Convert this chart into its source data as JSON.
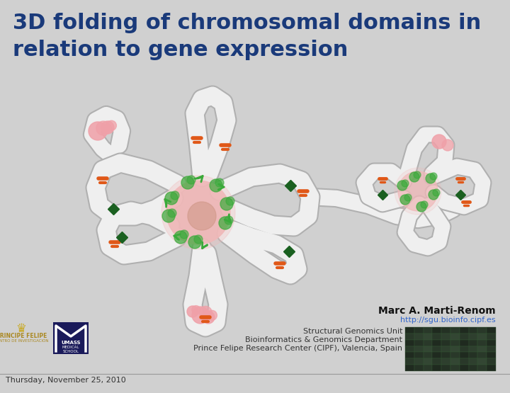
{
  "title_line1": "3D folding of chromosomal domains in",
  "title_line2": "relation to gene expression",
  "title_color": "#1a3a7a",
  "title_fontsize": 22,
  "bg_color": "#d0d0d0",
  "author_name": "Marc A. Marti-Renom",
  "author_url": "http://sgu.bioinfo.cipf.es",
  "url_color": "#3366cc",
  "affil1": "Structural Genomics Unit",
  "affil2": "Bioinformatics & Genomics Department",
  "affil3": "Prince Felipe Research Center (CIPF), Valencia, Spain",
  "affil_fontsize": 8,
  "affil_color": "#333333",
  "date_text": "Thursday, November 25, 2010",
  "date_color": "#333333",
  "date_fontsize": 8,
  "footer_line_color": "#999999",
  "tube_color": "#efefef",
  "tube_edge_color": "#b0b0b0",
  "nucleus_color": "#f0b8b8",
  "nucleus_edge": "#d09090",
  "green_color": "#3aaa3a",
  "dark_green": "#1a6020",
  "orange_color": "#e05818",
  "pink_blob": "#f0a0a8"
}
